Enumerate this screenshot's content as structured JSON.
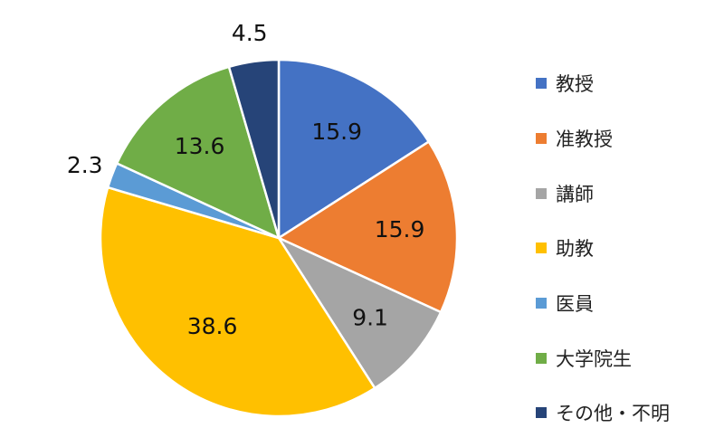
{
  "chart_data": {
    "type": "pie",
    "start_angle_deg": 0,
    "direction": "clockwise",
    "legend_position": "right",
    "slices": [
      {
        "label": "教授",
        "value": 15.9,
        "value_label": "15.9",
        "color": "#4472C4",
        "label_placement": "inside"
      },
      {
        "label": "准教授",
        "value": 15.9,
        "value_label": "15.9",
        "color": "#ED7D31",
        "label_placement": "inside"
      },
      {
        "label": "講師",
        "value": 9.1,
        "value_label": "9.1",
        "color": "#A5A5A5",
        "label_placement": "inside"
      },
      {
        "label": "助教",
        "value": 38.6,
        "value_label": "38.6",
        "color": "#FFC000",
        "label_placement": "inside"
      },
      {
        "label": "医員",
        "value": 2.3,
        "value_label": "2.3",
        "color": "#5B9BD5",
        "label_placement": "outside"
      },
      {
        "label": "大学院生",
        "value": 13.6,
        "value_label": "13.6",
        "color": "#70AD47",
        "label_placement": "inside"
      },
      {
        "label": "その他・不明",
        "value": 4.5,
        "value_label": "4.5",
        "color": "#264478",
        "label_placement": "outside"
      }
    ]
  }
}
